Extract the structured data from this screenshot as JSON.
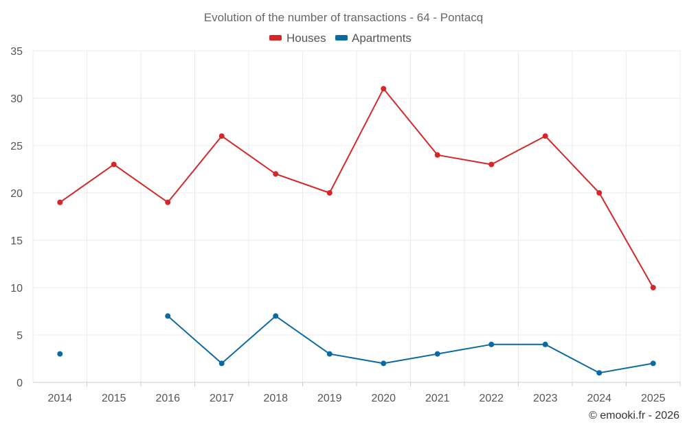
{
  "chart_data": {
    "type": "line",
    "title": "Evolution of the number of transactions - 64 - Pontacq",
    "xlabel": "",
    "ylabel": "",
    "categories": [
      "2014",
      "2015",
      "2016",
      "2017",
      "2018",
      "2019",
      "2020",
      "2021",
      "2022",
      "2023",
      "2024",
      "2025"
    ],
    "ylim": [
      0,
      35
    ],
    "yticks": [
      0,
      5,
      10,
      15,
      20,
      25,
      30,
      35
    ],
    "grid": true,
    "legend_position": "top-center",
    "series": [
      {
        "name": "Houses",
        "color": "#d62728",
        "values": [
          19,
          23,
          19,
          26,
          22,
          20,
          31,
          24,
          23,
          26,
          20,
          10
        ]
      },
      {
        "name": "Apartments",
        "color": "#0b6aa2",
        "values": [
          3,
          null,
          7,
          2,
          7,
          3,
          2,
          3,
          4,
          4,
          1,
          2
        ]
      }
    ],
    "credit": "© emooki.fr - 2026"
  }
}
